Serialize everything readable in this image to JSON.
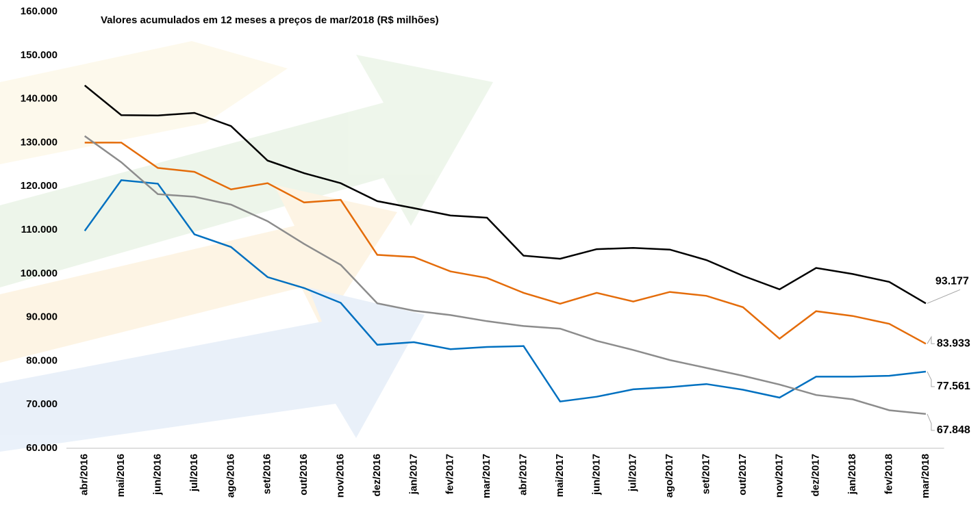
{
  "chart_data": {
    "type": "line",
    "title": "Valores acumulados em 12 meses a preços de mar/2018 (R$ milhões)",
    "categories": [
      "abr/2016",
      "mai/2016",
      "jun/2016",
      "jul/2016",
      "ago/2016",
      "set/2016",
      "out/2016",
      "nov/2016",
      "dez/2016",
      "jan/2017",
      "fev/2017",
      "mar/2017",
      "abr/2017",
      "mai/2017",
      "jun/2017",
      "jul/2017",
      "ago/2017",
      "set/2017",
      "out/2017",
      "nov/2017",
      "dez/2017",
      "jan/2018",
      "fev/2018",
      "mar/2018"
    ],
    "series": [
      {
        "color": "#000000",
        "values": [
          143100,
          136300,
          136200,
          136800,
          133800,
          125900,
          123000,
          120700,
          116600,
          115000,
          113300,
          112800,
          104100,
          103400,
          105600,
          105900,
          105500,
          103100,
          99500,
          96400,
          101300,
          99900,
          98100,
          93177
        ],
        "value_labels": [
          null,
          null,
          null,
          null,
          null,
          null,
          null,
          null,
          null,
          null,
          null,
          null,
          null,
          null,
          null,
          null,
          null,
          null,
          null,
          null,
          null,
          null,
          null,
          "93.177"
        ]
      },
      {
        "color": "#e46c0a",
        "values": [
          130000,
          130000,
          124200,
          123300,
          119300,
          120700,
          116300,
          116900,
          104300,
          103800,
          100500,
          99000,
          95600,
          93100,
          95600,
          93600,
          95800,
          94900,
          92300,
          85100,
          91400,
          90300,
          88500,
          83933
        ],
        "value_labels": [
          null,
          null,
          null,
          null,
          null,
          null,
          null,
          null,
          null,
          null,
          null,
          null,
          null,
          null,
          null,
          null,
          null,
          null,
          null,
          null,
          null,
          null,
          null,
          "83.933"
        ]
      },
      {
        "color": "#0070c0",
        "values": [
          109800,
          121400,
          120600,
          109000,
          106100,
          99200,
          96700,
          93300,
          83700,
          84300,
          82700,
          83200,
          83400,
          70700,
          71800,
          73500,
          74000,
          74700,
          73400,
          71600,
          76400,
          76400,
          76600,
          77561
        ],
        "value_labels": [
          null,
          null,
          null,
          null,
          null,
          null,
          null,
          null,
          null,
          null,
          null,
          null,
          null,
          null,
          null,
          null,
          null,
          null,
          null,
          null,
          null,
          null,
          null,
          "77.561"
        ]
      },
      {
        "color": "#8c8c8c",
        "values": [
          131500,
          125500,
          118200,
          117600,
          115800,
          112000,
          106800,
          102000,
          93200,
          91500,
          90500,
          89100,
          88000,
          87400,
          84600,
          82500,
          80200,
          78400,
          76600,
          74600,
          72200,
          71200,
          68700,
          67848
        ],
        "value_labels": [
          null,
          null,
          null,
          null,
          null,
          null,
          null,
          null,
          null,
          null,
          null,
          null,
          null,
          null,
          null,
          null,
          null,
          null,
          null,
          null,
          null,
          null,
          null,
          "67.848"
        ]
      }
    ],
    "ylim": [
      60000,
      160000
    ],
    "yticks": [
      {
        "value": 60000,
        "label": "60.000"
      },
      {
        "value": 70000,
        "label": "70.000"
      },
      {
        "value": 80000,
        "label": "80.000"
      },
      {
        "value": 90000,
        "label": "90.000"
      },
      {
        "value": 100000,
        "label": "100.000"
      },
      {
        "value": 110000,
        "label": "110.000"
      },
      {
        "value": 120000,
        "label": "120.000"
      },
      {
        "value": 130000,
        "label": "130.000"
      },
      {
        "value": 140000,
        "label": "140.000"
      },
      {
        "value": 150000,
        "label": "150.000"
      },
      {
        "value": 160000,
        "label": "160.000"
      }
    ],
    "grid": false
  }
}
